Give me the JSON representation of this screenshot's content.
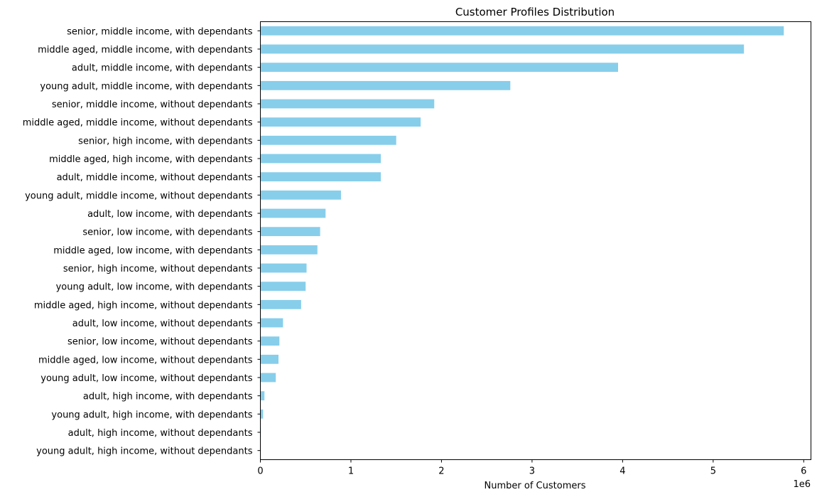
{
  "chart_data": {
    "type": "bar",
    "orientation": "horizontal",
    "title": "Customer Profiles Distribution",
    "xlabel": "Number of Customers",
    "ylabel": "",
    "x_offset_label": "1e6",
    "x_scale": 1000000,
    "xlim": [
      0,
      6080000
    ],
    "x_ticks": [
      0,
      1,
      2,
      3,
      4,
      5,
      6
    ],
    "grid": false,
    "bar_color": "#87ceeb",
    "categories": [
      "senior, middle income, with dependants",
      "middle aged, middle income, with dependants",
      "adult, middle income, with dependants",
      "young adult, middle income, with dependants",
      "senior, middle income, without dependants",
      "middle aged, middle income, without dependants",
      "senior, high income, with dependants",
      "middle aged, high income, with dependants",
      "adult, middle income, without dependants",
      "young adult, middle income, without dependants",
      "adult, low income, with dependants",
      "senior, low income, with dependants",
      "middle aged, low income, with dependants",
      "senior, high income, without dependants",
      "young adult, low income, with dependants",
      "middle aged, high income, without dependants",
      "adult, low income, without dependants",
      "senior, low income, without dependants",
      "middle aged, low income, without dependants",
      "young adult, low income, without dependants",
      "adult, high income, with dependants",
      "young adult, high income, with dependants",
      "adult, high income, without dependants",
      "young adult, high income, without dependants"
    ],
    "values": [
      5780000,
      5340000,
      3950000,
      2760000,
      1920000,
      1770000,
      1500000,
      1330000,
      1330000,
      890000,
      720000,
      660000,
      630000,
      510000,
      500000,
      450000,
      250000,
      210000,
      200000,
      170000,
      45000,
      30000,
      5000,
      3000
    ]
  }
}
